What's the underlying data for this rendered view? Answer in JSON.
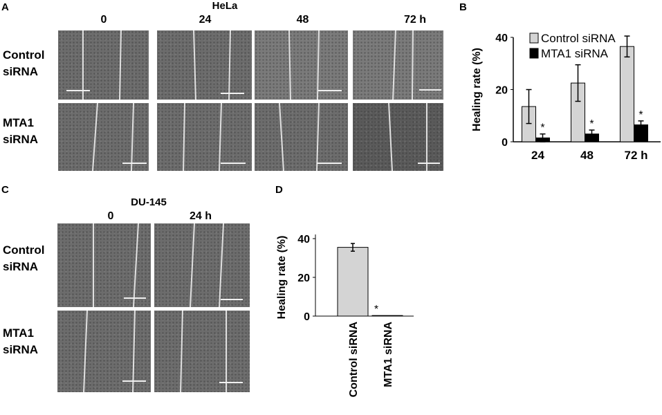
{
  "panel_labels": {
    "A": "A",
    "B": "B",
    "C": "C",
    "D": "D"
  },
  "panel_a": {
    "cell_line": "HeLa",
    "timepoints": [
      "0",
      "24",
      "48",
      "72 h"
    ],
    "rows": [
      [
        "Control",
        "siRNA"
      ],
      [
        "MTA1",
        "siRNA"
      ]
    ]
  },
  "panel_c": {
    "cell_line": "DU-145",
    "timepoints": [
      "0",
      "24 h"
    ],
    "rows": [
      [
        "Control",
        "siRNA"
      ],
      [
        "MTA1",
        "siRNA"
      ]
    ]
  },
  "chart_data": [
    {
      "panel": "B",
      "type": "bar",
      "categories": [
        "24",
        "48",
        "72 h"
      ],
      "series": [
        {
          "name": "Control siRNA",
          "values": [
            13.5,
            22.5,
            36.5
          ],
          "errors": [
            6.5,
            7,
            4
          ],
          "color": "#d4d4d4"
        },
        {
          "name": "MTA1 siRNA",
          "values": [
            1.5,
            3,
            6.5
          ],
          "errors": [
            1.5,
            1.5,
            1.5
          ],
          "color": "#000000"
        }
      ],
      "significance": [
        "*",
        "*",
        "*"
      ],
      "xlabel": "",
      "ylabel": "Healing rate (%)",
      "ylim": [
        0,
        40
      ],
      "yticks": [
        "0",
        "20",
        "40"
      ],
      "legend_position": "top-right"
    },
    {
      "panel": "D",
      "type": "bar",
      "categories": [
        "Control siRNA",
        "MTA1 siRNA"
      ],
      "values": [
        35.5,
        0.3
      ],
      "errors": [
        2,
        0
      ],
      "significance": [
        "",
        "*"
      ],
      "xlabel": "",
      "ylabel": "Healing rate (%)",
      "ylim": [
        0,
        40
      ],
      "yticks": [
        "0",
        "20",
        "40"
      ]
    }
  ]
}
